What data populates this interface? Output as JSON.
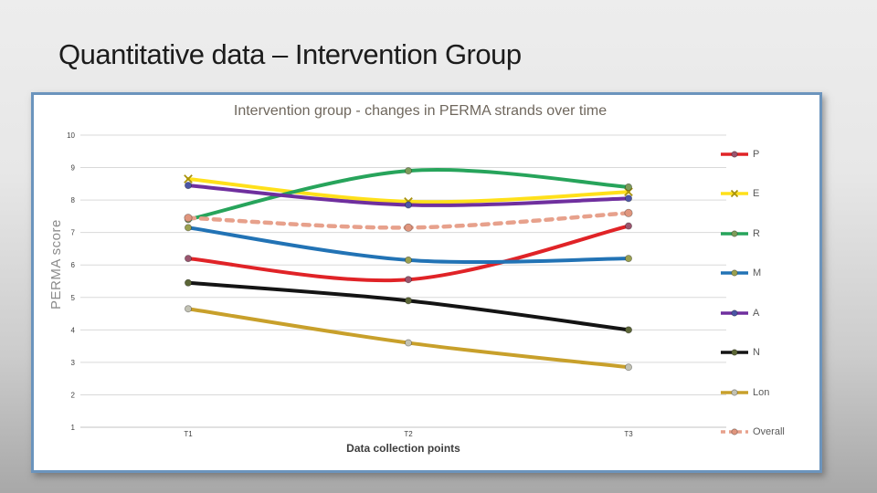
{
  "slide": {
    "title": "Quantitative data – Intervention Group",
    "background_top": "#ededed",
    "background_bottom": "#a8a8a8"
  },
  "chart_card": {
    "border_color": "#6b94bd",
    "background": "#ffffff"
  },
  "chart_data": {
    "type": "line",
    "title": "Intervention group - changes in PERMA strands over time",
    "title_color": "#6f675d",
    "xlabel": "Data collection points",
    "ylabel": "PERMA score",
    "categories": [
      "T1",
      "T2",
      "T3"
    ],
    "ylim": [
      1,
      10
    ],
    "y_ticks": [
      1,
      2,
      3,
      4,
      5,
      6,
      7,
      8,
      9,
      10
    ],
    "grid": true,
    "gridline_color": "#d9d9d9",
    "line_style": "smoothed",
    "legend_position": "right",
    "series": [
      {
        "name": "P",
        "values": [
          6.2,
          5.55,
          7.2
        ],
        "color": "#e02327",
        "marker": "circle",
        "marker_color": "#9a556e",
        "dash": false
      },
      {
        "name": "E",
        "values": [
          8.65,
          7.95,
          8.25
        ],
        "color": "#ffe01a",
        "marker": "x",
        "marker_color": "#a8920e",
        "dash": false
      },
      {
        "name": "R",
        "values": [
          7.4,
          8.9,
          8.4
        ],
        "color": "#27a45b",
        "marker": "circle",
        "marker_color": "#7d9c59",
        "dash": false
      },
      {
        "name": "M",
        "values": [
          7.15,
          6.15,
          6.2
        ],
        "color": "#2273b5",
        "marker": "circle",
        "marker_color": "#9aa050",
        "dash": false
      },
      {
        "name": "A",
        "values": [
          8.45,
          7.85,
          8.05
        ],
        "color": "#6f2f9e",
        "marker": "circle",
        "marker_color": "#4b55a5",
        "dash": false
      },
      {
        "name": "N",
        "values": [
          5.45,
          4.9,
          4.0
        ],
        "color": "#141414",
        "marker": "circle",
        "marker_color": "#5c6637",
        "dash": false
      },
      {
        "name": "Lon",
        "values": [
          4.65,
          3.6,
          2.85
        ],
        "color": "#c8a02b",
        "marker": "circle",
        "marker_color": "#c2c2b4",
        "dash": false
      },
      {
        "name": "Overall",
        "values": [
          7.45,
          7.15,
          7.6
        ],
        "color": "#e7a18c",
        "marker": "circle",
        "marker_color": "#e0967e",
        "dash": true
      }
    ]
  }
}
